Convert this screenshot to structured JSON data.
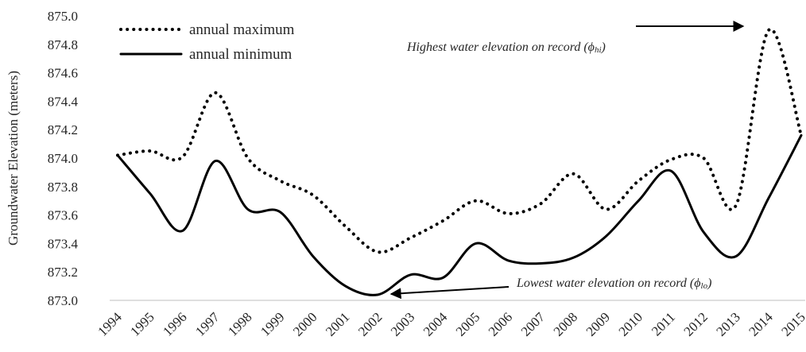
{
  "chart_data": {
    "type": "line",
    "y_label": "Groundwater Elevation (meters)",
    "categories": [
      "1994",
      "1995",
      "1996",
      "1997",
      "1998",
      "1999",
      "2000",
      "2001",
      "2002",
      "2003",
      "2004",
      "2005",
      "2006",
      "2007",
      "2008",
      "2009",
      "2010",
      "2011",
      "2012",
      "2013",
      "2014",
      "2015"
    ],
    "series": [
      {
        "name": "annual maximum",
        "color": "#000000",
        "style": "dotted",
        "values": [
          874.02,
          874.05,
          874.01,
          874.46,
          874.0,
          873.84,
          873.74,
          873.52,
          873.34,
          873.44,
          873.56,
          873.7,
          873.61,
          873.68,
          873.89,
          873.64,
          873.84,
          873.99,
          874.0,
          873.67,
          874.9,
          874.16
        ]
      },
      {
        "name": "annual minimum",
        "color": "#000000",
        "style": "solid",
        "values": [
          874.02,
          873.75,
          873.49,
          873.98,
          873.64,
          873.62,
          873.31,
          873.1,
          873.04,
          873.18,
          873.16,
          873.4,
          873.28,
          873.26,
          873.3,
          873.45,
          873.7,
          873.91,
          873.48,
          873.31,
          873.72,
          874.16
        ]
      }
    ],
    "ylim": [
      873,
      875
    ],
    "yticks": [
      {
        "value": 873,
        "label": "873.0"
      },
      873.2,
      873.4,
      873.6,
      873.8,
      {
        "value": 874,
        "label": "874.0"
      },
      874.2,
      874.4,
      874.6,
      874.8,
      {
        "value": 875,
        "label": "875.0"
      }
    ],
    "legend": "upper left",
    "annotations": [
      {
        "prefix": "Highest water elevation on record (ϕ",
        "sub": "hi",
        "suffix": ")"
      },
      {
        "prefix": "Lowest water elevation on record (ϕ",
        "sub": "lo",
        "suffix": ")"
      }
    ]
  }
}
